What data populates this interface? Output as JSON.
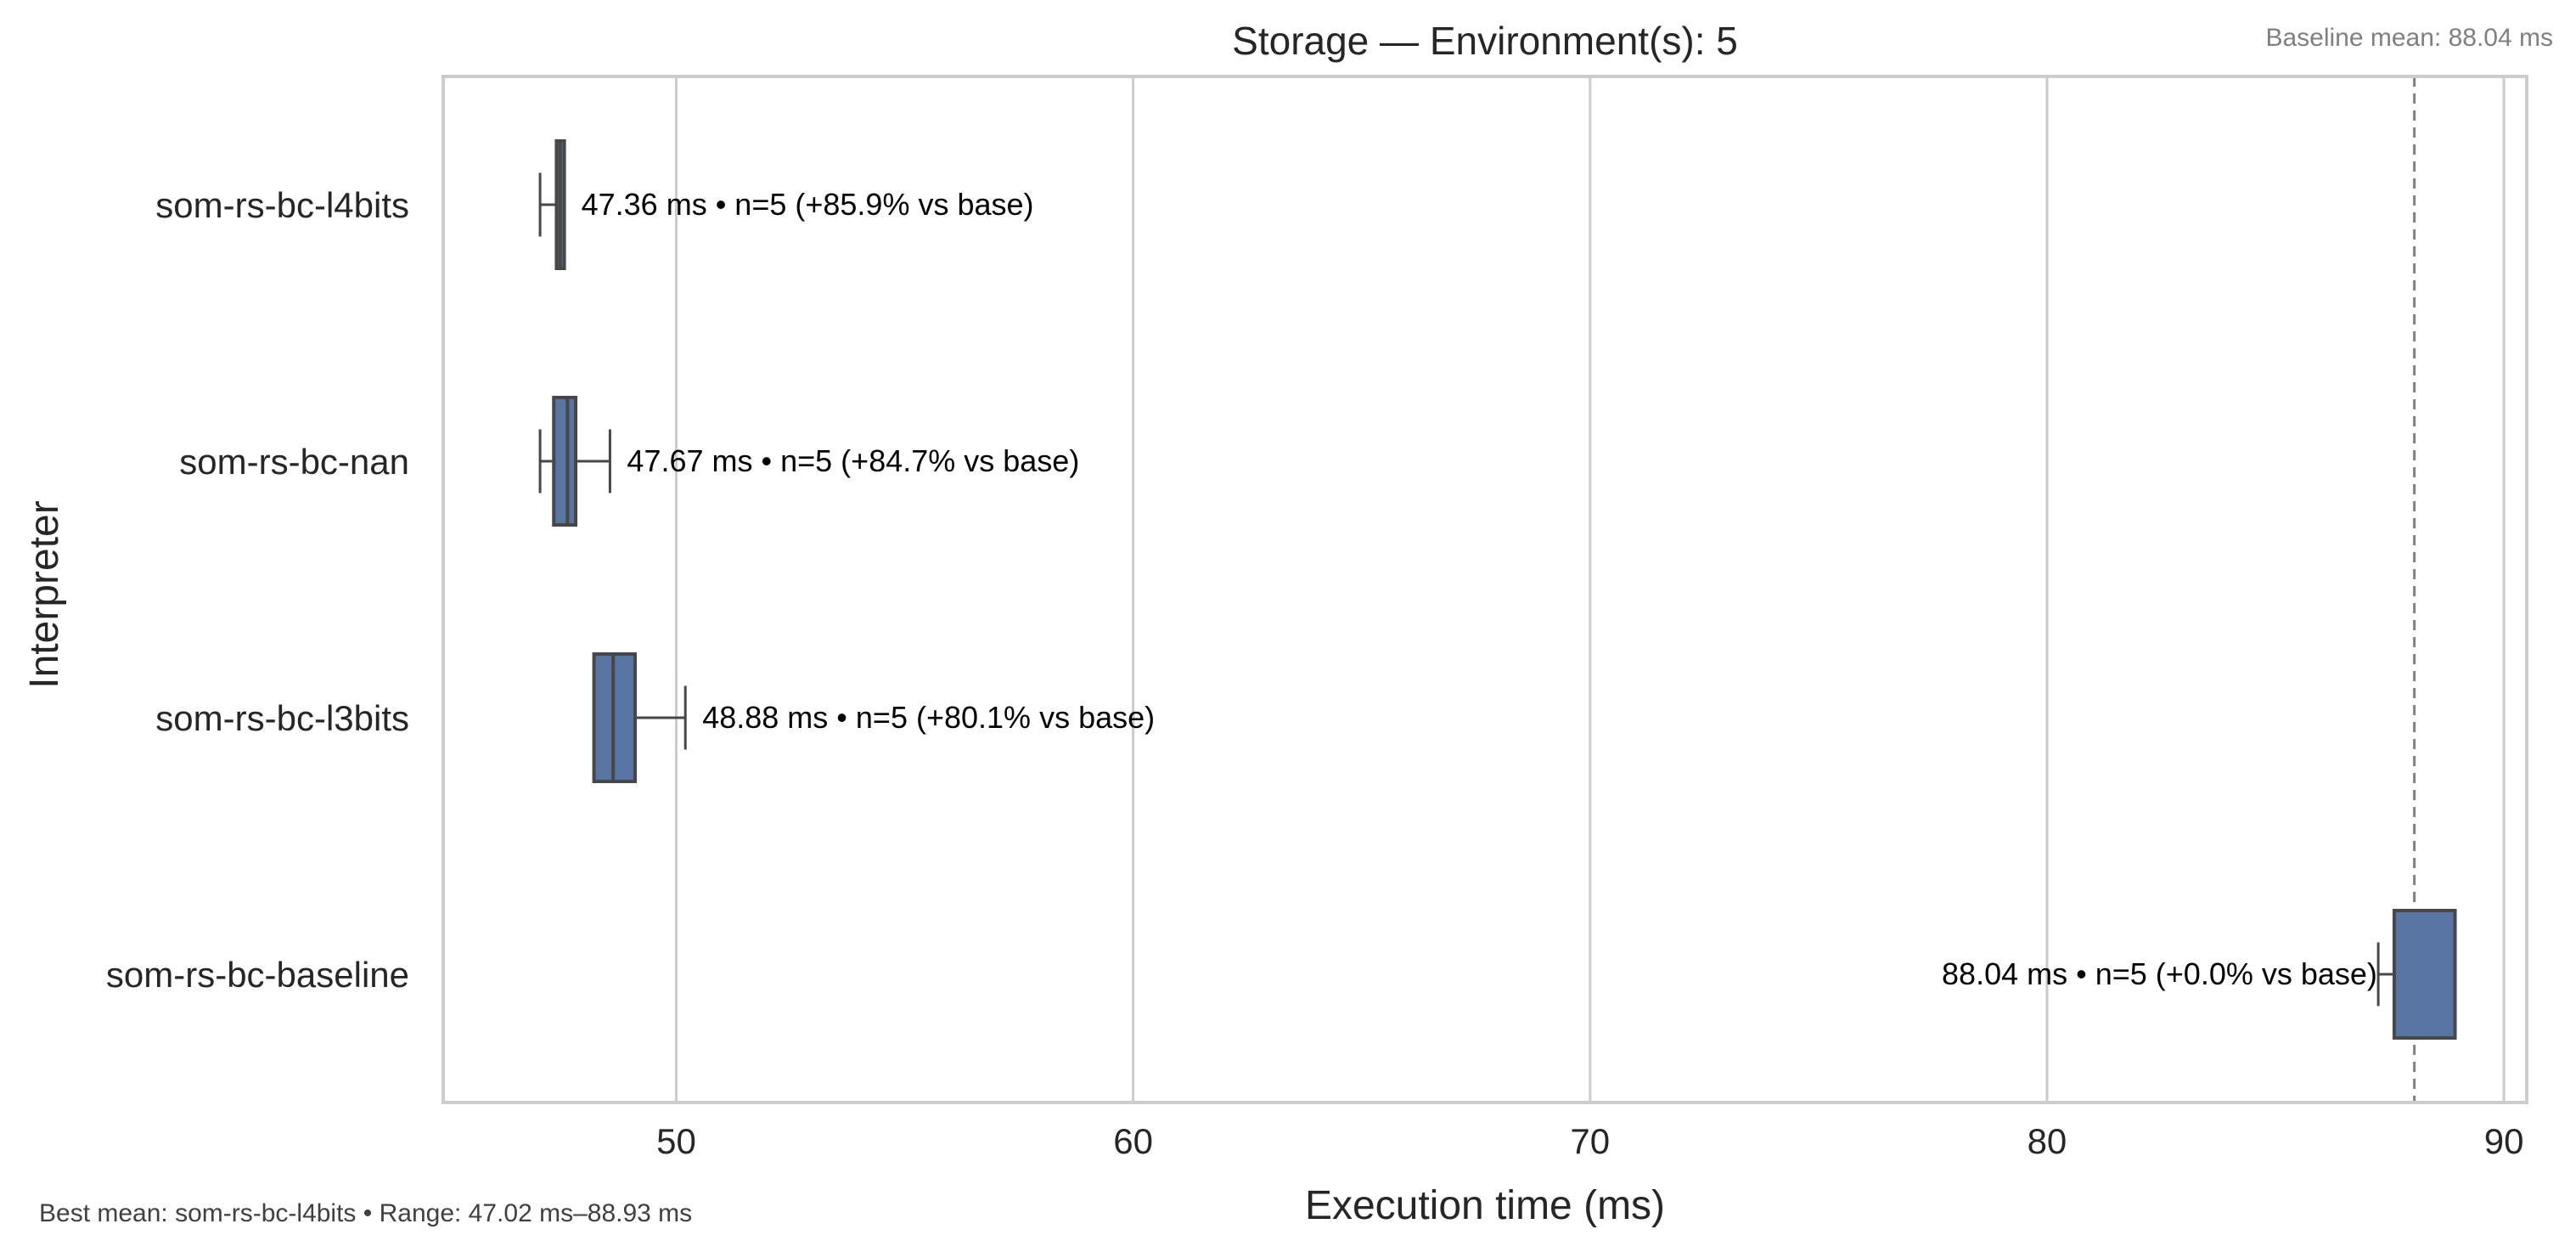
{
  "chart_data": {
    "type": "box",
    "orientation": "horizontal",
    "title": "Storage — Environment(s): 5",
    "xlabel": "Execution time (ms)",
    "ylabel": "Interpreter",
    "xlim": [
      44.9,
      90.5
    ],
    "xticks": [
      50,
      60,
      70,
      80,
      90
    ],
    "grid": "vertical",
    "box_color": "#5975a4",
    "baseline": {
      "value": 88.04,
      "label": "Baseline mean: 88.04 ms",
      "line_color": "#808080"
    },
    "footer": "Best mean: som-rs-bc-l4bits • Range: 47.02 ms–88.93 ms",
    "series": [
      {
        "name": "som-rs-bc-l4bits",
        "whisker_low": 47.02,
        "q1": 47.38,
        "median": 47.46,
        "q3": 47.55,
        "whisker_high": 47.55,
        "annotation": "47.36 ms • n=5 (+85.9% vs base)"
      },
      {
        "name": "som-rs-bc-nan",
        "whisker_low": 47.02,
        "q1": 47.32,
        "median": 47.62,
        "q3": 47.8,
        "whisker_high": 48.55,
        "annotation": "47.67 ms • n=5 (+84.7% vs base)"
      },
      {
        "name": "som-rs-bc-l3bits",
        "whisker_low": 48.2,
        "q1": 48.2,
        "median": 48.62,
        "q3": 49.1,
        "whisker_high": 50.2,
        "annotation": "48.88 ms • n=5 (+80.1% vs base)"
      },
      {
        "name": "som-rs-bc-baseline",
        "whisker_low": 87.25,
        "q1": 87.6,
        "median": 88.93,
        "q3": 88.93,
        "whisker_high": 88.93,
        "annotation": "88.04 ms • n=5 (+0.0% vs base)"
      }
    ]
  }
}
